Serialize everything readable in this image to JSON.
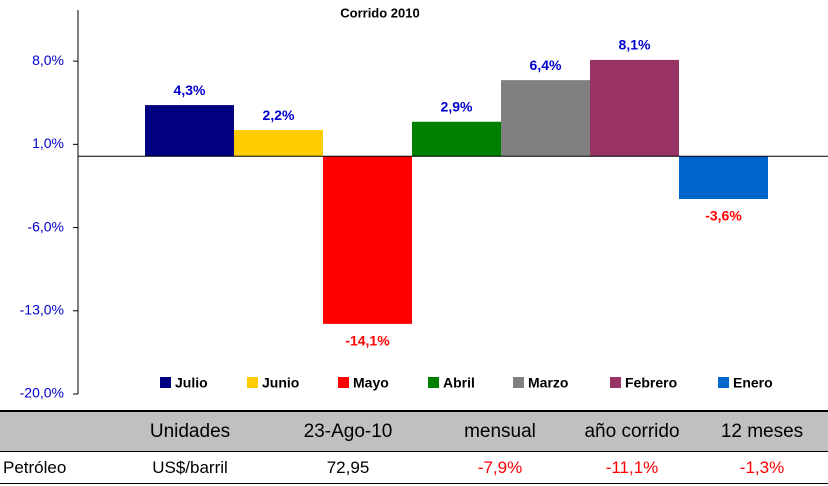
{
  "chart_data": {
    "type": "bar",
    "title": "Corrido 2010",
    "categories": [
      "Julio",
      "Junio",
      "Mayo",
      "Abril",
      "Marzo",
      "Febrero",
      "Enero"
    ],
    "values": [
      4.3,
      2.2,
      -14.1,
      2.9,
      6.4,
      8.1,
      -3.6
    ],
    "value_labels": [
      "4,3%",
      "2,2%",
      "-14,1%",
      "2,9%",
      "6,4%",
      "8,1%",
      "-3,6%"
    ],
    "colors": [
      "#000080",
      "#ffcc00",
      "#ff0000",
      "#008000",
      "#808080",
      "#993366",
      "#0066cc"
    ],
    "ylim": [
      -20,
      12.3
    ],
    "yticks": [
      {
        "value": 8,
        "label": "8,0%"
      },
      {
        "value": 1,
        "label": "1,0%"
      },
      {
        "value": -6,
        "label": "-6,0%"
      },
      {
        "value": -13,
        "label": "-13,0%"
      },
      {
        "value": -20,
        "label": "-20,0%"
      }
    ],
    "legend": "bottom"
  },
  "table": {
    "header": [
      "Unidades",
      "23-Ago-10",
      "mensual",
      "año corrido",
      "12 meses"
    ],
    "rows": [
      [
        "Petróleo",
        "US$/barril",
        "72,95",
        "-7,9%",
        "-11,1%",
        "-1,3%"
      ]
    ]
  }
}
